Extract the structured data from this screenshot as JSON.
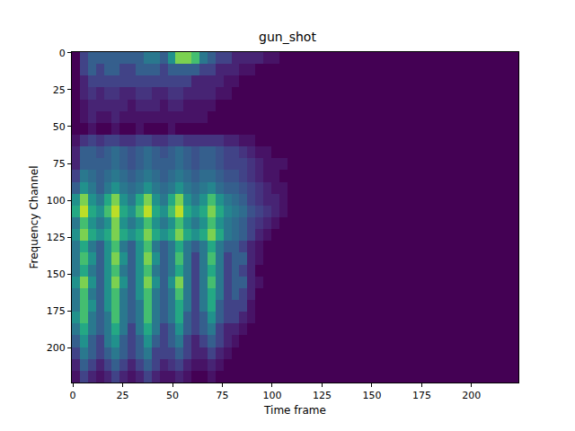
{
  "chart_data": {
    "type": "heatmap",
    "title": "gun_shot",
    "xlabel": "Time frame",
    "ylabel": "Frequency Channel",
    "xlim": [
      -0.5,
      223.5
    ],
    "ylim": [
      223.5,
      -0.5
    ],
    "xticks": [
      0,
      25,
      50,
      75,
      100,
      125,
      150,
      175,
      200
    ],
    "yticks": [
      0,
      25,
      50,
      75,
      100,
      125,
      150,
      175,
      200
    ],
    "zlim": [
      0,
      1
    ],
    "x_edges": [
      -0.5,
      3.5,
      7.5,
      11.5,
      15.5,
      19.5,
      23.5,
      27.5,
      31.5,
      35.5,
      39.5,
      43.5,
      47.5,
      51.5,
      55.5,
      59.5,
      63.5,
      67.5,
      71.5,
      75.5,
      79.5,
      83.5,
      87.5,
      91.5,
      95.5,
      99.5,
      103.5,
      107.5,
      111.5,
      223.5
    ],
    "y_edges": [
      -0.5,
      7.5,
      15.5,
      23.5,
      31.5,
      39.5,
      47.5,
      55.5,
      63.5,
      71.5,
      79.5,
      87.5,
      95.5,
      103.5,
      111.5,
      119.5,
      127.5,
      135.5,
      143.5,
      151.5,
      159.5,
      167.5,
      175.5,
      183.5,
      191.5,
      199.5,
      207.5,
      215.5,
      223.5
    ],
    "cells": [
      [
        0,
        0.2,
        0.3,
        0.3,
        0.3,
        0.3,
        0.3,
        0.3,
        0.3,
        0.4,
        0.4,
        0.3,
        0.5,
        0.8,
        0.8,
        0.7,
        0.4,
        0.3,
        0.2,
        0.2,
        0.1,
        0.1,
        0.1,
        0.1,
        0.05,
        0.05,
        0,
        0,
        0
      ],
      [
        0,
        0.2,
        0.3,
        0.2,
        0.3,
        0.3,
        0.2,
        0.2,
        0.3,
        0.3,
        0.3,
        0.2,
        0.3,
        0.3,
        0.3,
        0.3,
        0.2,
        0.2,
        0.1,
        0.1,
        0.1,
        0.05,
        0.05,
        0,
        0,
        0,
        0,
        0,
        0
      ],
      [
        0,
        0.1,
        0.2,
        0.2,
        0.2,
        0.2,
        0.2,
        0.2,
        0.2,
        0.2,
        0.2,
        0.2,
        0.2,
        0.2,
        0.2,
        0.1,
        0.1,
        0.1,
        0.1,
        0.05,
        0.05,
        0,
        0,
        0,
        0,
        0,
        0,
        0,
        0
      ],
      [
        0,
        0.1,
        0.15,
        0.1,
        0.15,
        0.15,
        0.1,
        0.1,
        0.15,
        0.15,
        0.1,
        0.1,
        0.15,
        0.15,
        0.1,
        0.1,
        0.1,
        0.1,
        0.05,
        0.05,
        0,
        0,
        0,
        0,
        0,
        0,
        0,
        0,
        0
      ],
      [
        0,
        0.05,
        0.1,
        0.1,
        0.1,
        0.1,
        0.1,
        0.05,
        0.1,
        0.1,
        0.1,
        0.05,
        0.1,
        0.1,
        0.05,
        0.05,
        0.05,
        0.05,
        0,
        0,
        0,
        0,
        0,
        0,
        0,
        0,
        0,
        0,
        0
      ],
      [
        0,
        0.05,
        0.1,
        0.05,
        0.05,
        0.1,
        0.05,
        0.05,
        0.05,
        0.05,
        0.05,
        0.05,
        0.05,
        0.05,
        0.05,
        0.05,
        0.05,
        0,
        0,
        0,
        0,
        0,
        0,
        0,
        0,
        0,
        0,
        0,
        0
      ],
      [
        0,
        0,
        0.05,
        0,
        0,
        0.05,
        0,
        0,
        0.05,
        0,
        0,
        0,
        0.05,
        0,
        0,
        0,
        0,
        0,
        0,
        0,
        0,
        0,
        0,
        0,
        0,
        0,
        0,
        0,
        0
      ],
      [
        0.05,
        0.15,
        0.2,
        0.15,
        0.2,
        0.2,
        0.15,
        0.15,
        0.2,
        0.2,
        0.15,
        0.15,
        0.2,
        0.2,
        0.15,
        0.15,
        0.15,
        0.15,
        0.15,
        0.1,
        0.1,
        0.05,
        0.05,
        0,
        0,
        0,
        0,
        0,
        0
      ],
      [
        0.1,
        0.3,
        0.3,
        0.25,
        0.3,
        0.35,
        0.3,
        0.25,
        0.3,
        0.35,
        0.3,
        0.25,
        0.3,
        0.35,
        0.3,
        0.25,
        0.3,
        0.3,
        0.25,
        0.2,
        0.2,
        0.15,
        0.1,
        0.05,
        0.05,
        0,
        0,
        0,
        0
      ],
      [
        0.1,
        0.3,
        0.3,
        0.3,
        0.3,
        0.35,
        0.3,
        0.25,
        0.3,
        0.35,
        0.3,
        0.3,
        0.3,
        0.35,
        0.3,
        0.25,
        0.3,
        0.3,
        0.25,
        0.2,
        0.2,
        0.2,
        0.15,
        0.1,
        0.05,
        0.05,
        0.05,
        0,
        0
      ],
      [
        0.2,
        0.4,
        0.35,
        0.3,
        0.35,
        0.4,
        0.35,
        0.3,
        0.35,
        0.4,
        0.35,
        0.3,
        0.35,
        0.4,
        0.35,
        0.3,
        0.35,
        0.35,
        0.3,
        0.25,
        0.25,
        0.2,
        0.15,
        0.1,
        0.05,
        0.05,
        0,
        0,
        0
      ],
      [
        0.3,
        0.5,
        0.4,
        0.3,
        0.4,
        0.5,
        0.4,
        0.35,
        0.4,
        0.5,
        0.4,
        0.35,
        0.4,
        0.5,
        0.4,
        0.35,
        0.4,
        0.45,
        0.35,
        0.3,
        0.3,
        0.25,
        0.2,
        0.15,
        0.1,
        0.05,
        0.05,
        0,
        0
      ],
      [
        0.5,
        0.8,
        0.5,
        0.4,
        0.6,
        0.8,
        0.5,
        0.4,
        0.6,
        0.8,
        0.5,
        0.4,
        0.6,
        0.8,
        0.5,
        0.4,
        0.5,
        0.7,
        0.5,
        0.4,
        0.35,
        0.3,
        0.2,
        0.15,
        0.1,
        0.1,
        0.05,
        0,
        0
      ],
      [
        0.6,
        0.9,
        0.6,
        0.5,
        0.7,
        0.9,
        0.6,
        0.5,
        0.7,
        0.9,
        0.6,
        0.5,
        0.7,
        0.9,
        0.6,
        0.5,
        0.6,
        0.8,
        0.6,
        0.45,
        0.4,
        0.35,
        0.25,
        0.2,
        0.15,
        0.1,
        0.05,
        0,
        0
      ],
      [
        0.4,
        0.7,
        0.5,
        0.4,
        0.5,
        0.8,
        0.5,
        0.4,
        0.5,
        0.7,
        0.5,
        0.4,
        0.5,
        0.7,
        0.5,
        0.4,
        0.5,
        0.7,
        0.5,
        0.4,
        0.35,
        0.3,
        0.2,
        0.15,
        0.1,
        0.05,
        0,
        0,
        0
      ],
      [
        0.5,
        0.8,
        0.6,
        0.5,
        0.6,
        0.8,
        0.6,
        0.5,
        0.6,
        0.8,
        0.6,
        0.5,
        0.6,
        0.8,
        0.6,
        0.5,
        0.6,
        0.8,
        0.6,
        0.4,
        0.35,
        0.3,
        0.2,
        0.1,
        0.05,
        0,
        0,
        0,
        0
      ],
      [
        0.4,
        0.6,
        0.4,
        0.3,
        0.5,
        0.7,
        0.4,
        0.3,
        0.5,
        0.7,
        0.4,
        0.3,
        0.4,
        0.6,
        0.4,
        0.3,
        0.4,
        0.6,
        0.4,
        0.3,
        0.3,
        0.2,
        0.1,
        0.05,
        0,
        0,
        0,
        0,
        0
      ],
      [
        0.4,
        0.7,
        0.5,
        0.3,
        0.5,
        0.8,
        0.5,
        0.3,
        0.5,
        0.8,
        0.5,
        0.3,
        0.4,
        0.7,
        0.4,
        0.2,
        0.4,
        0.7,
        0.4,
        0.2,
        0.3,
        0.3,
        0.1,
        0.05,
        0,
        0,
        0,
        0,
        0
      ],
      [
        0.4,
        0.6,
        0.4,
        0.3,
        0.5,
        0.7,
        0.4,
        0.3,
        0.5,
        0.7,
        0.4,
        0.3,
        0.4,
        0.6,
        0.4,
        0.2,
        0.4,
        0.6,
        0.4,
        0.2,
        0.3,
        0.2,
        0.1,
        0,
        0,
        0,
        0,
        0,
        0
      ],
      [
        0.5,
        0.8,
        0.5,
        0.3,
        0.5,
        0.8,
        0.5,
        0.3,
        0.5,
        0.8,
        0.5,
        0.3,
        0.5,
        0.8,
        0.4,
        0.2,
        0.4,
        0.7,
        0.4,
        0.2,
        0.3,
        0.3,
        0.1,
        0.05,
        0,
        0,
        0,
        0,
        0
      ],
      [
        0.4,
        0.7,
        0.4,
        0.3,
        0.5,
        0.7,
        0.4,
        0.3,
        0.5,
        0.7,
        0.4,
        0.3,
        0.4,
        0.7,
        0.4,
        0.2,
        0.4,
        0.6,
        0.4,
        0.2,
        0.3,
        0.2,
        0.1,
        0,
        0,
        0,
        0,
        0,
        0
      ],
      [
        0.4,
        0.7,
        0.5,
        0.3,
        0.5,
        0.7,
        0.4,
        0.3,
        0.4,
        0.7,
        0.4,
        0.3,
        0.4,
        0.6,
        0.4,
        0.2,
        0.4,
        0.6,
        0.3,
        0.2,
        0.2,
        0.2,
        0.05,
        0,
        0,
        0,
        0,
        0,
        0
      ],
      [
        0.5,
        0.7,
        0.4,
        0.3,
        0.4,
        0.7,
        0.4,
        0.3,
        0.4,
        0.7,
        0.4,
        0.3,
        0.4,
        0.6,
        0.3,
        0.2,
        0.3,
        0.5,
        0.3,
        0.2,
        0.2,
        0.1,
        0.05,
        0,
        0,
        0,
        0,
        0,
        0
      ],
      [
        0.4,
        0.6,
        0.4,
        0.3,
        0.4,
        0.6,
        0.4,
        0.2,
        0.4,
        0.6,
        0.4,
        0.2,
        0.3,
        0.5,
        0.3,
        0.2,
        0.3,
        0.4,
        0.2,
        0.1,
        0.1,
        0.05,
        0,
        0,
        0,
        0,
        0,
        0,
        0
      ],
      [
        0.3,
        0.5,
        0.3,
        0.2,
        0.4,
        0.5,
        0.3,
        0.2,
        0.3,
        0.5,
        0.3,
        0.2,
        0.3,
        0.4,
        0.2,
        0.1,
        0.2,
        0.3,
        0.2,
        0.1,
        0.05,
        0,
        0,
        0,
        0,
        0,
        0,
        0,
        0
      ],
      [
        0.2,
        0.4,
        0.3,
        0.2,
        0.3,
        0.4,
        0.3,
        0.2,
        0.3,
        0.4,
        0.2,
        0.2,
        0.2,
        0.3,
        0.2,
        0.1,
        0.1,
        0.2,
        0.1,
        0.05,
        0,
        0,
        0,
        0,
        0,
        0,
        0,
        0,
        0
      ],
      [
        0.1,
        0.3,
        0.2,
        0.1,
        0.2,
        0.3,
        0.2,
        0.1,
        0.2,
        0.3,
        0.2,
        0.1,
        0.15,
        0.2,
        0.1,
        0.05,
        0.05,
        0.1,
        0.05,
        0,
        0,
        0,
        0,
        0,
        0,
        0,
        0,
        0,
        0
      ],
      [
        0.05,
        0.2,
        0.1,
        0.05,
        0.1,
        0.2,
        0.1,
        0.05,
        0.1,
        0.2,
        0.1,
        0.05,
        0.05,
        0.1,
        0.05,
        0,
        0,
        0.05,
        0,
        0,
        0,
        0,
        0,
        0,
        0,
        0,
        0,
        0,
        0
      ]
    ]
  }
}
